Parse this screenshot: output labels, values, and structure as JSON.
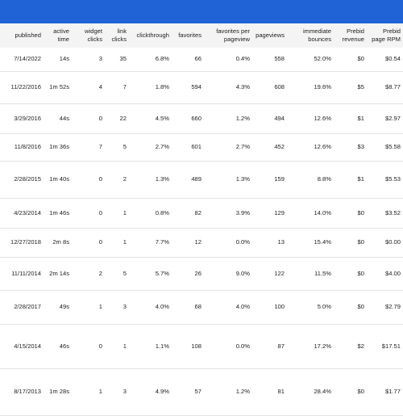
{
  "columns": [
    "published",
    "active time",
    "widget clicks",
    "link clicks",
    "clickthrough",
    "favorites",
    "favorites per pageview",
    "pageviews",
    "immediate bounces",
    "Prebid revenue",
    "Prebid page RPM"
  ],
  "rows": [
    [
      "7/14/2022",
      "14s",
      "3",
      "35",
      "6.8%",
      "66",
      "0.4%",
      "558",
      "52.0%",
      "$0",
      "$0.54"
    ],
    [
      "11/22/2016",
      "1m 52s",
      "4",
      "7",
      "1.8%",
      "594",
      "4.3%",
      "608",
      "19.6%",
      "$5",
      "$8.77"
    ],
    [
      "3/29/2016",
      "44s",
      "0",
      "22",
      "4.5%",
      "660",
      "1.2%",
      "494",
      "12.6%",
      "$1",
      "$2.97"
    ],
    [
      "11/8/2016",
      "1m 36s",
      "7",
      "5",
      "2.7%",
      "601",
      "2.7%",
      "452",
      "12.6%",
      "$3",
      "$5.58"
    ],
    [
      "2/28/2015",
      "1m 40s",
      "0",
      "2",
      "1.3%",
      "489",
      "1.3%",
      "159",
      "8.8%",
      "$1",
      "$5.53"
    ],
    [
      "4/23/2014",
      "1m 46s",
      "0",
      "1",
      "0.8%",
      "82",
      "3.9%",
      "129",
      "14.0%",
      "$0",
      "$3.52"
    ],
    [
      "12/27/2018",
      "2m 8s",
      "0",
      "1",
      "7.7%",
      "12",
      "0.0%",
      "13",
      "15.4%",
      "$0",
      "$0.00"
    ],
    [
      "11/11/2014",
      "2m 14s",
      "2",
      "5",
      "5.7%",
      "26",
      "9.0%",
      "122",
      "11.5%",
      "$0",
      "$4.00"
    ],
    [
      "2/28/2017",
      "49s",
      "1",
      "3",
      "4.0%",
      "68",
      "4.0%",
      "100",
      "5.0%",
      "$0",
      "$2.79"
    ],
    [
      "4/15/2014",
      "46s",
      "0",
      "1",
      "1.1%",
      "108",
      "0.0%",
      "87",
      "17.2%",
      "$2",
      "$17.51"
    ],
    [
      "8/17/2013",
      "1m 28s",
      "1",
      "3",
      "4.9%",
      "57",
      "1.2%",
      "81",
      "28.4%",
      "$0",
      "$1.77"
    ]
  ],
  "colors": {
    "topbar": "#1f63d6",
    "header_bg": "#f4f4f4",
    "row_divider": "#e3e3e3"
  }
}
